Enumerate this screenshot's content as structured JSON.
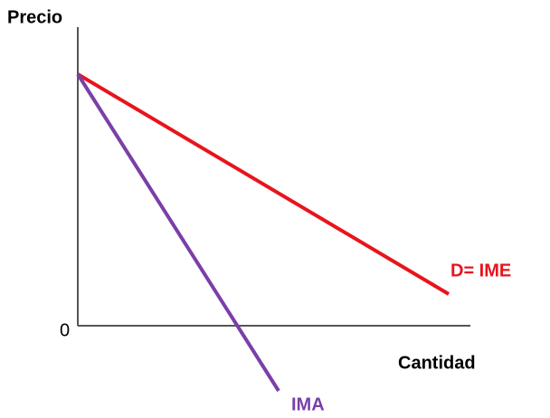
{
  "axes": {
    "y_label": "Precio",
    "x_label": "Cantidad",
    "origin": "0"
  },
  "lines": [
    {
      "label": "D= IME",
      "color": "#e8141c"
    },
    {
      "label": "IMA",
      "color": "#7a3fa8"
    }
  ]
}
